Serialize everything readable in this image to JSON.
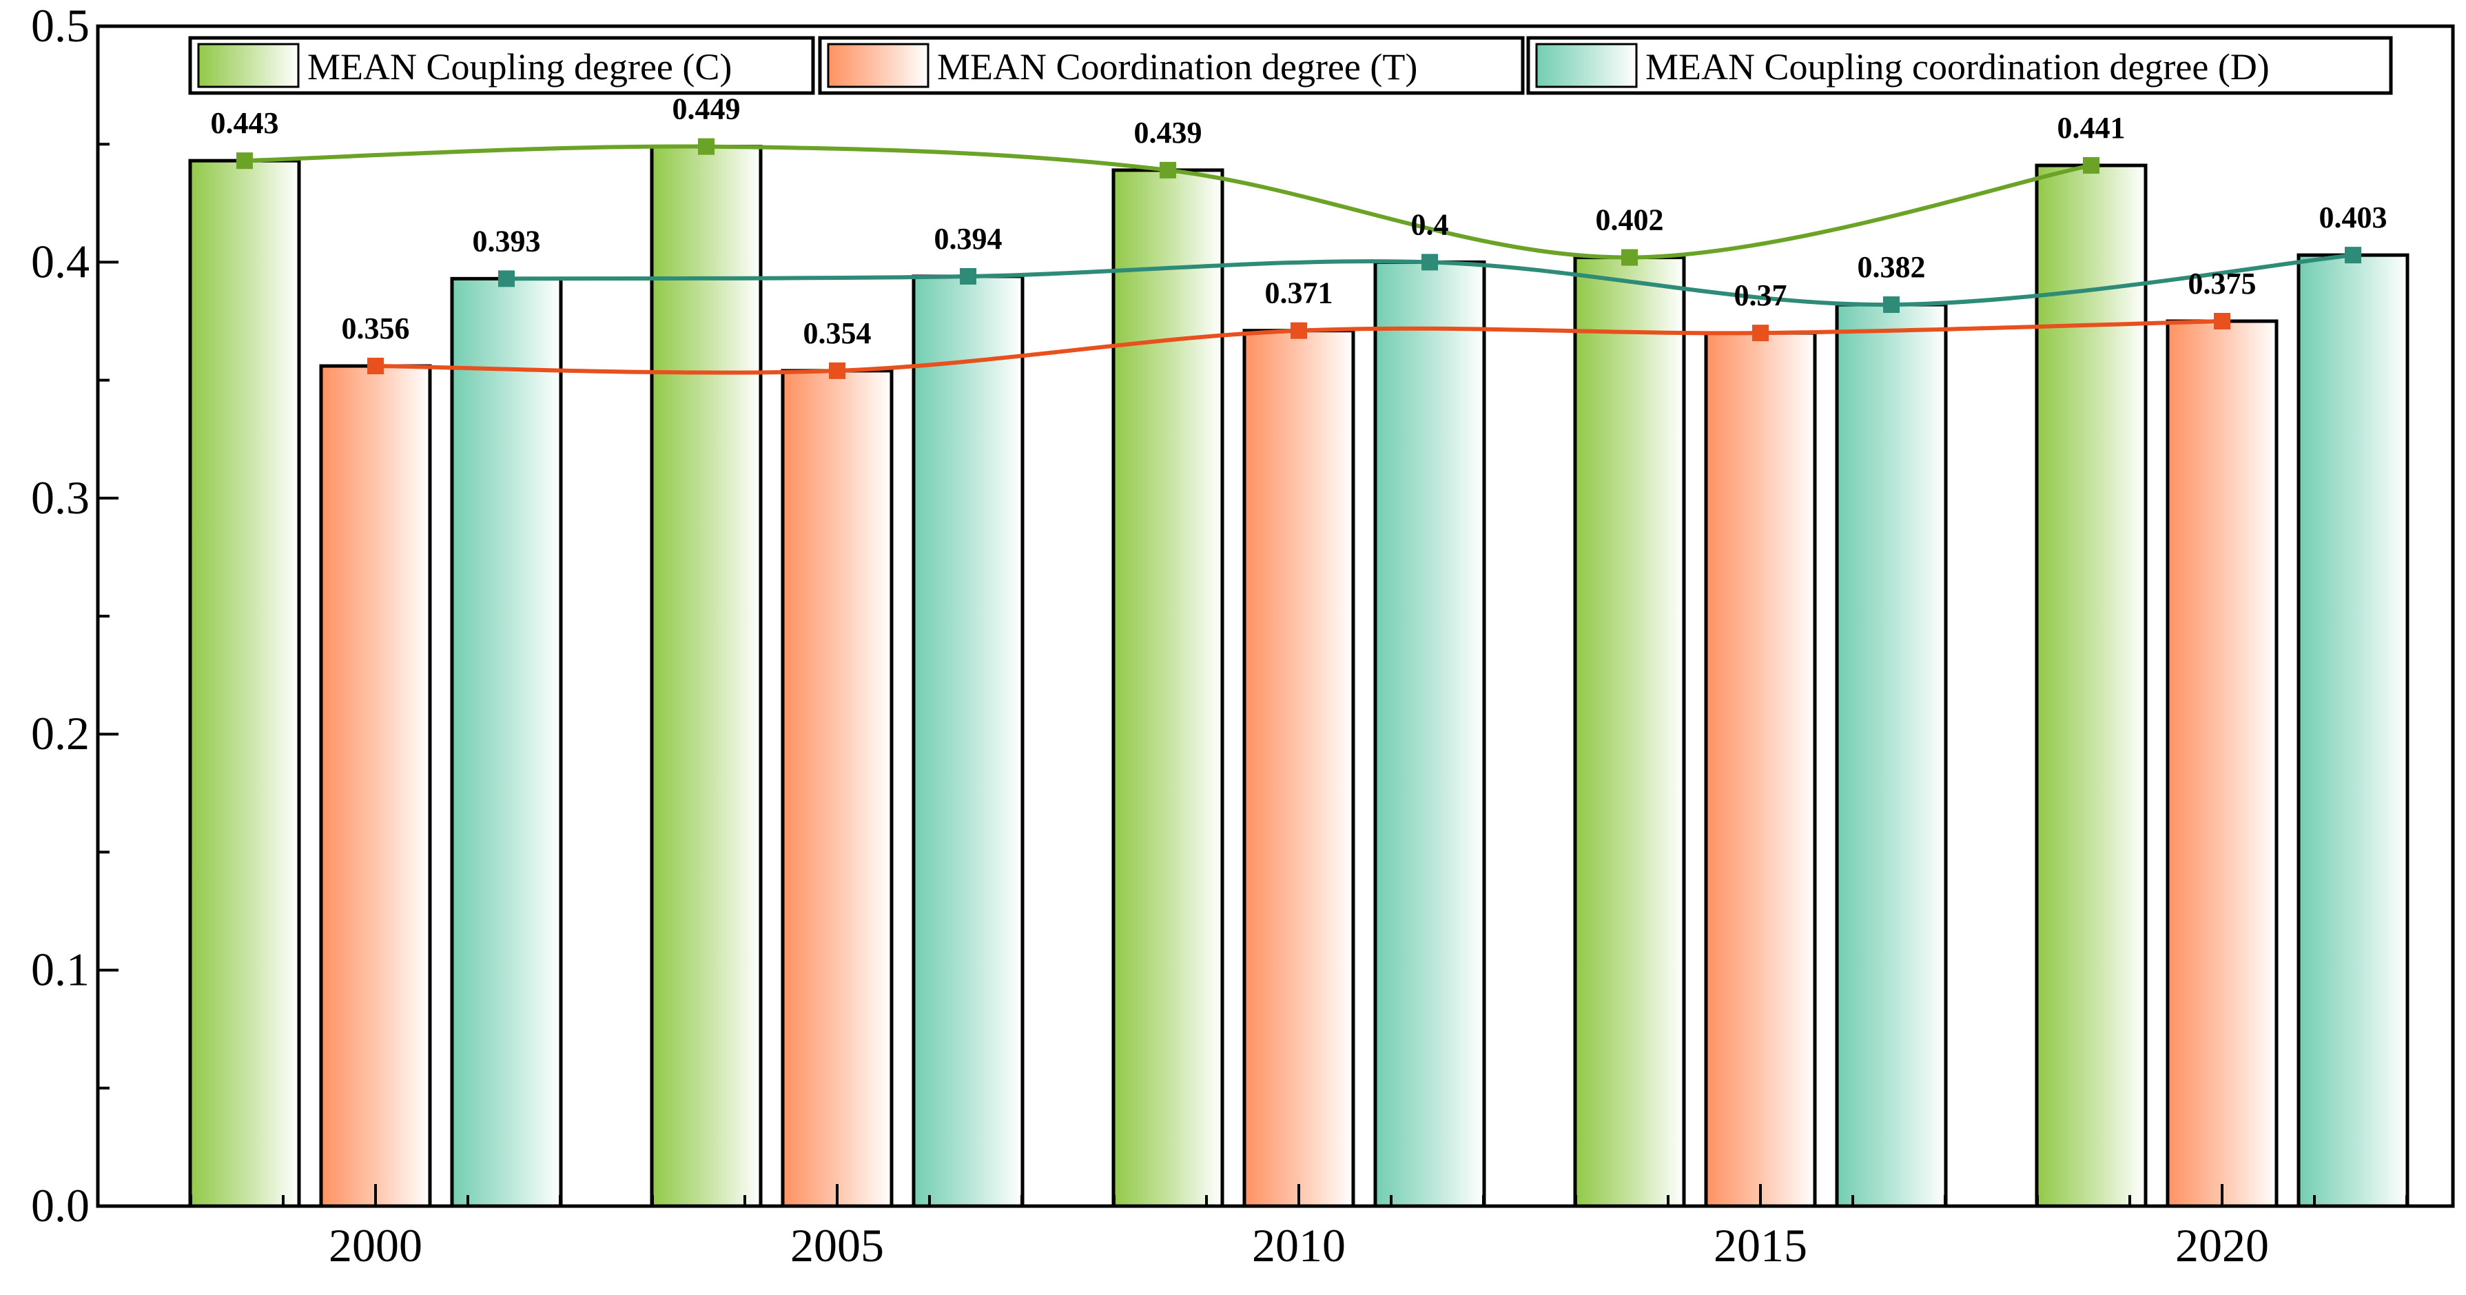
{
  "chart_data": {
    "type": "bar",
    "categories": [
      "2000",
      "2005",
      "2010",
      "2015",
      "2020"
    ],
    "ylim": [
      0,
      0.5
    ],
    "yticks": [
      "0.0",
      "0.1",
      "0.2",
      "0.3",
      "0.4",
      "0.5"
    ],
    "xlabel": "",
    "ylabel": "",
    "legend_position": "top",
    "series": [
      {
        "name": "MEAN Coupling degree (C)",
        "values": [
          0.443,
          0.449,
          0.439,
          0.402,
          0.441
        ],
        "labels": [
          "0.443",
          "0.449",
          "0.439",
          "0.402",
          "0.441"
        ],
        "color": "#8cc63f",
        "line_color": "#6aa325"
      },
      {
        "name": "MEAN Coordination degree (T)",
        "values": [
          0.356,
          0.354,
          0.371,
          0.37,
          0.375
        ],
        "labels": [
          "0.356",
          "0.354",
          "0.371",
          "0.37",
          "0.375"
        ],
        "color": "#ff8c5a",
        "line_color": "#e8501e"
      },
      {
        "name": "MEAN Coupling coordination degree (D)",
        "values": [
          0.393,
          0.394,
          0.4,
          0.382,
          0.403
        ],
        "labels": [
          "0.393",
          "0.394",
          "0.4",
          "0.382",
          "0.403"
        ],
        "color": "#6ccbad",
        "line_color": "#2e8b78"
      }
    ]
  }
}
